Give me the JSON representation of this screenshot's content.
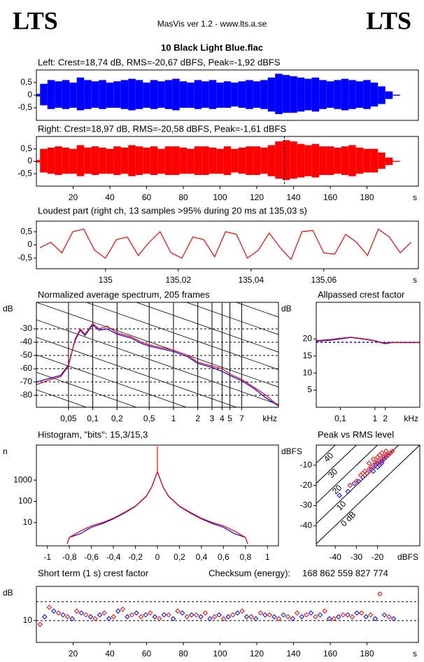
{
  "header": {
    "logo_left": "LTS",
    "logo_right": "LTS",
    "app": "MasVis ver 1.2 - www.lts.a.se",
    "file": "10 Black Light Blue.flac"
  },
  "chart_data": [
    {
      "type": "waveform",
      "title": "Left: Crest=18,74 dB, RMS=-20,67 dBFS, Peak=-1,92 dBFS",
      "xlim": [
        0,
        208
      ],
      "ylim": [
        -1,
        1
      ],
      "yticks": [
        {
          "value": 0.5,
          "label": "0,5"
        },
        0,
        {
          "value": -0.5,
          "label": "-0,5"
        }
      ],
      "x": [
        0,
        4,
        8,
        12,
        16,
        20,
        24,
        28,
        32,
        36,
        40,
        44,
        48,
        52,
        56,
        60,
        64,
        68,
        72,
        76,
        80,
        84,
        88,
        92,
        96,
        100,
        104,
        108,
        112,
        116,
        120,
        124,
        128,
        132,
        136,
        140,
        144,
        148,
        152,
        156,
        160,
        164,
        168,
        172,
        176,
        180,
        184,
        188,
        192,
        196
      ],
      "series": [
        {
          "color": "#0000ff",
          "values": [
            0.05,
            0.45,
            0.6,
            0.55,
            0.6,
            0.5,
            0.7,
            0.6,
            0.55,
            0.6,
            0.5,
            0.55,
            0.6,
            0.65,
            0.6,
            0.5,
            0.6,
            0.55,
            0.6,
            0.65,
            0.55,
            0.5,
            0.6,
            0.55,
            0.6,
            0.5,
            0.55,
            0.5,
            0.55,
            0.6,
            0.55,
            0.6,
            0.7,
            0.85,
            0.8,
            0.75,
            0.7,
            0.65,
            0.7,
            0.6,
            0.55,
            0.6,
            0.65,
            0.6,
            0.55,
            0.6,
            0.5,
            0.35,
            0.15,
            0.02
          ],
          "lower": [
            -0.05,
            -0.4,
            -0.55,
            -0.5,
            -0.55,
            -0.5,
            -0.6,
            -0.55,
            -0.5,
            -0.55,
            -0.5,
            -0.5,
            -0.55,
            -0.6,
            -0.55,
            -0.5,
            -0.55,
            -0.5,
            -0.55,
            -0.6,
            -0.5,
            -0.5,
            -0.55,
            -0.5,
            -0.55,
            -0.5,
            -0.5,
            -0.45,
            -0.5,
            -0.55,
            -0.5,
            -0.55,
            -0.65,
            -0.75,
            -0.7,
            -0.7,
            -0.65,
            -0.6,
            -0.65,
            -0.55,
            -0.5,
            -0.55,
            -0.6,
            -0.55,
            -0.5,
            -0.55,
            -0.45,
            -0.35,
            -0.15,
            -0.02
          ]
        }
      ]
    },
    {
      "type": "waveform",
      "title": "Right: Crest=18,97 dB, RMS=-20,58 dBFS, Peak=-1,61 dBFS",
      "xlim": [
        0,
        208
      ],
      "ylim": [
        -1,
        1
      ],
      "yticks": [
        {
          "value": 0.5,
          "label": "0,5"
        },
        0,
        {
          "value": -0.5,
          "label": "-0,5"
        }
      ],
      "xticks": [
        20,
        40,
        60,
        80,
        100,
        120,
        140,
        160,
        180
      ],
      "xlabel": "s",
      "vlines": [
        135.03
      ],
      "x": [
        0,
        4,
        8,
        12,
        16,
        20,
        24,
        28,
        32,
        36,
        40,
        44,
        48,
        52,
        56,
        60,
        64,
        68,
        72,
        76,
        80,
        84,
        88,
        92,
        96,
        100,
        104,
        108,
        112,
        116,
        120,
        124,
        128,
        132,
        136,
        140,
        144,
        148,
        152,
        156,
        160,
        164,
        168,
        172,
        176,
        180,
        184,
        188,
        192,
        196
      ],
      "series": [
        {
          "color": "#ff0000",
          "values": [
            0.05,
            0.5,
            0.55,
            0.6,
            0.55,
            0.5,
            0.65,
            0.55,
            0.6,
            0.55,
            0.5,
            0.6,
            0.55,
            0.65,
            0.6,
            0.55,
            0.6,
            0.5,
            0.6,
            0.6,
            0.55,
            0.5,
            0.6,
            0.6,
            0.55,
            0.5,
            0.6,
            0.5,
            0.55,
            0.6,
            0.6,
            0.55,
            0.65,
            0.8,
            0.85,
            0.8,
            0.7,
            0.65,
            0.7,
            0.6,
            0.6,
            0.55,
            0.6,
            0.65,
            0.55,
            0.5,
            0.5,
            0.35,
            0.15,
            0.02
          ],
          "lower": [
            -0.05,
            -0.45,
            -0.5,
            -0.55,
            -0.5,
            -0.5,
            -0.6,
            -0.5,
            -0.55,
            -0.5,
            -0.5,
            -0.55,
            -0.5,
            -0.6,
            -0.55,
            -0.5,
            -0.55,
            -0.5,
            -0.55,
            -0.55,
            -0.5,
            -0.5,
            -0.55,
            -0.55,
            -0.5,
            -0.5,
            -0.55,
            -0.45,
            -0.5,
            -0.55,
            -0.55,
            -0.5,
            -0.6,
            -0.7,
            -0.75,
            -0.7,
            -0.65,
            -0.6,
            -0.65,
            -0.55,
            -0.55,
            -0.5,
            -0.55,
            -0.6,
            -0.5,
            -0.45,
            -0.45,
            -0.3,
            -0.15,
            -0.02
          ]
        }
      ]
    },
    {
      "type": "line",
      "title": "Loudest part (right ch, 13 samples >95% during 20 ms at 135,03 s)",
      "xlim": [
        134.981,
        135.086
      ],
      "ylim": [
        -0.9,
        0.9
      ],
      "yticks": [
        {
          "value": 0.5,
          "label": "0,5"
        },
        0,
        {
          "value": -0.5,
          "label": "-0,5"
        }
      ],
      "xticks": [
        135,
        {
          "value": 135.02,
          "label": "135,02"
        },
        {
          "value": 135.04,
          "label": "135,04"
        },
        {
          "value": 135.06,
          "label": "135,06"
        }
      ],
      "xlabel": "s",
      "x": [
        134.982,
        134.985,
        134.988,
        134.991,
        134.994,
        134.997,
        135.0,
        135.003,
        135.006,
        135.009,
        135.012,
        135.015,
        135.018,
        135.021,
        135.024,
        135.027,
        135.03,
        135.033,
        135.036,
        135.039,
        135.042,
        135.045,
        135.048,
        135.051,
        135.054,
        135.057,
        135.06,
        135.063,
        135.066,
        135.069,
        135.072,
        135.075,
        135.078,
        135.081,
        135.084
      ],
      "series": [
        {
          "color": "#ff0000",
          "values": [
            -0.1,
            0.1,
            -0.3,
            0.5,
            0.6,
            -0.2,
            -0.5,
            0.2,
            0.3,
            -0.4,
            0.1,
            0.5,
            -0.3,
            -0.5,
            0.3,
            0.2,
            -0.45,
            0.5,
            0.4,
            -0.5,
            -0.2,
            0.45,
            -0.1,
            -0.55,
            0.5,
            0.55,
            -0.3,
            -0.35,
            0.4,
            0.1,
            -0.4,
            0.6,
            0.3,
            -0.3,
            0.1
          ]
        }
      ]
    },
    {
      "type": "line",
      "title": "Normalized average spectrum, 205 frames",
      "xlog": true,
      "xlim": [
        0.02,
        20
      ],
      "ylim": [
        -89,
        -10
      ],
      "grid": true,
      "ylabel": "dB",
      "xlabel": "kHz",
      "yticks": [
        -30,
        -40,
        -50,
        -60,
        -70,
        -80
      ],
      "xticks": [
        {
          "value": 0.05,
          "label": "0,05"
        },
        {
          "value": 0.1,
          "label": "0,1"
        },
        {
          "value": 0.2,
          "label": "0,2"
        },
        {
          "value": 0.5,
          "label": "0,5"
        },
        1,
        2,
        3,
        4,
        5,
        7
      ],
      "x": [
        0.02,
        0.03,
        0.04,
        0.05,
        0.06,
        0.07,
        0.08,
        0.1,
        0.12,
        0.15,
        0.2,
        0.3,
        0.4,
        0.5,
        0.7,
        1,
        1.5,
        2,
        3,
        4,
        5,
        7,
        10,
        14,
        20
      ],
      "series": [
        {
          "color": "#0000ff",
          "values": [
            -70,
            -67,
            -65,
            -57,
            -39,
            -31,
            -35,
            -27,
            -31,
            -30,
            -34,
            -37,
            -41,
            -43,
            -45,
            -47,
            -51,
            -56,
            -59,
            -62,
            -65,
            -69,
            -75,
            -82,
            -88
          ]
        },
        {
          "color": "#ff0000",
          "values": [
            -72,
            -68,
            -66,
            -58,
            -38,
            -30,
            -34,
            -26,
            -30,
            -28,
            -33,
            -36,
            -40,
            -42,
            -44,
            -46,
            -50,
            -55,
            -58,
            -60,
            -64,
            -68,
            -74,
            -80,
            -88
          ]
        }
      ]
    },
    {
      "type": "line",
      "title": "Allpassed crest factor",
      "xlog": true,
      "xlim": [
        0.02,
        20
      ],
      "ylim": [
        0,
        30.7
      ],
      "ylabel": "dB",
      "xlabel": "kHz",
      "yticks": [
        20,
        15,
        10,
        5
      ],
      "xticks": [
        {
          "value": 0.1,
          "label": "0,1"
        },
        1,
        2
      ],
      "hlines": [
        19
      ],
      "x": [
        0.02,
        0.05,
        0.1,
        0.2,
        0.5,
        1,
        1.5,
        2,
        3,
        5,
        10,
        20
      ],
      "series": [
        {
          "color": "#0000ff",
          "values": [
            19.3,
            19.6,
            20,
            20.4,
            19.9,
            19.4,
            18.9,
            18.6,
            18.9,
            18.9,
            18.9,
            18.9
          ]
        },
        {
          "color": "#ff0000",
          "values": [
            19.5,
            19.8,
            20.2,
            20.5,
            20,
            19.5,
            19,
            18.8,
            19,
            19,
            19,
            19
          ]
        }
      ]
    },
    {
      "type": "line",
      "title": "Histogram, \"bits\": 15,3/15,3",
      "ylog": true,
      "xlim": [
        -1.1,
        1.1
      ],
      "ylim": [
        0.8,
        45000
      ],
      "ylabel": "n",
      "yticks": [
        1000,
        100,
        10
      ],
      "xticks": [
        -1,
        {
          "value": -0.8,
          "label": "-0,8"
        },
        {
          "value": -0.6,
          "label": "-0,6"
        },
        {
          "value": -0.4,
          "label": "-0,4"
        },
        {
          "value": -0.2,
          "label": "-0,2"
        },
        0,
        {
          "value": 0.2,
          "label": "0,2"
        },
        {
          "value": 0.4,
          "label": "0,4"
        },
        {
          "value": 0.6,
          "label": "0,6"
        },
        {
          "value": 0.8,
          "label": "0,8"
        },
        1
      ],
      "x": [
        -0.82,
        -0.8,
        -0.7,
        -0.6,
        -0.5,
        -0.4,
        -0.3,
        -0.2,
        -0.1,
        -0.05,
        0,
        0,
        0,
        0.05,
        0.1,
        0.2,
        0.3,
        0.4,
        0.5,
        0.6,
        0.7,
        0.8,
        0.82
      ],
      "series": [
        {
          "color": "#0000ff",
          "values": [
            1,
            2,
            3,
            6,
            9,
            15,
            28,
            58,
            175,
            490,
            2450,
            2500,
            2450,
            490,
            175,
            58,
            28,
            15,
            9,
            6,
            3,
            2,
            1
          ]
        },
        {
          "color": "#ff0000",
          "values": [
            1,
            2,
            4,
            7,
            10,
            16,
            30,
            60,
            180,
            500,
            2500,
            40000,
            2500,
            500,
            180,
            60,
            30,
            16,
            10,
            7,
            4,
            2,
            1
          ]
        }
      ]
    },
    {
      "type": "scatter",
      "title": "Peak vs RMS level",
      "xlim": [
        -49,
        0
      ],
      "ylim": [
        -50,
        0
      ],
      "ylabel": "dBFS",
      "xlabel": "dBFS",
      "xticks": [
        -40,
        -30,
        -20
      ],
      "yticks": [
        -10,
        -20,
        -30,
        -40
      ],
      "diagonals": [
        {
          "value": 40,
          "label": "40"
        },
        {
          "value": 30,
          "label": "30"
        },
        {
          "value": 20,
          "label": "20"
        },
        {
          "value": 10,
          "label": "10"
        },
        {
          "value": 0,
          "label": "0 dB"
        }
      ],
      "series": [
        {
          "color": "#0000ff",
          "x": [
            -38,
            -34,
            -31,
            -29,
            -27,
            -25,
            -23,
            -21,
            -20,
            -19,
            -18,
            -17,
            -16,
            -15,
            -14,
            -22,
            -20,
            -18
          ],
          "values": [
            -25,
            -23,
            -19,
            -18,
            -16,
            -14,
            -12,
            -10,
            -9,
            -10,
            -8,
            -7,
            -6,
            -5,
            -4,
            -13,
            -11,
            -9
          ]
        },
        {
          "color": "#ff0000",
          "x": [
            -33,
            -30,
            -28,
            -27,
            -26,
            -25,
            -24,
            -23,
            -22,
            -21,
            -20,
            -19,
            -18,
            -17,
            -16,
            -15,
            -14,
            -13,
            -22,
            -20,
            -18,
            -16,
            -24,
            -19,
            -17
          ],
          "values": [
            -20,
            -18,
            -15,
            -14,
            -13,
            -14,
            -12,
            -11,
            -10,
            -9,
            -8,
            -9,
            -7,
            -6,
            -5,
            -5,
            -4,
            -3,
            -7,
            -6,
            -4,
            -3,
            -9,
            -5,
            -6
          ]
        }
      ]
    },
    {
      "type": "scatter",
      "title": "Short term (1 s) crest factor",
      "annotations": [
        "Checksum (energy):",
        "168 862 559 827 774"
      ],
      "xlim": [
        0,
        208
      ],
      "ylim": [
        -1.5,
        28
      ],
      "ylabel": "dB",
      "xlabel": "s",
      "yticks": [
        10
      ],
      "hlines": [
        10,
        20
      ],
      "xticks": [
        20,
        40,
        60,
        80,
        100,
        120,
        140,
        160,
        180
      ],
      "series": [
        {
          "color": "#0000ff",
          "x": [
            4.5,
            9.5,
            14.5,
            19.5,
            24.5,
            29.5,
            34.5,
            39.5,
            44.5,
            49.5,
            54.5,
            59.5,
            64.5,
            69.5,
            74.5,
            79.5,
            84.5,
            89.5,
            94.5,
            99.5,
            104.5,
            109.5,
            114.5,
            119.5,
            124.5,
            129.5,
            134.5,
            139.5,
            144.5,
            149.5,
            154.5,
            159.5,
            164.5,
            169.5,
            174.5,
            179.5,
            184.5,
            189.5,
            194.5
          ],
          "values": [
            12,
            15,
            13,
            11,
            14,
            12,
            13,
            11,
            15,
            12,
            14,
            13,
            12,
            13,
            11,
            14,
            13,
            12,
            11,
            13,
            12,
            14,
            12,
            11,
            13,
            12,
            13,
            11,
            12,
            14,
            13,
            11,
            12,
            13,
            14,
            12,
            11,
            13,
            11
          ]
        },
        {
          "color": "#ff0000",
          "x": [
            2,
            7,
            12,
            17,
            22,
            27,
            32,
            37,
            42,
            47,
            52,
            57,
            62,
            67,
            72,
            77,
            82,
            87,
            92,
            97,
            102,
            107,
            112,
            117,
            122,
            127,
            132,
            137,
            142,
            147,
            152,
            157,
            162,
            167,
            172,
            177,
            182,
            187,
            192
          ],
          "values": [
            8,
            17,
            14,
            12,
            15,
            13,
            11,
            14,
            12,
            16,
            13,
            12,
            14,
            11,
            13,
            15,
            12,
            13,
            14,
            12,
            11,
            13,
            15,
            12,
            14,
            13,
            11,
            12,
            14,
            13,
            12,
            15,
            11,
            13,
            12,
            14,
            13,
            24,
            12
          ]
        }
      ]
    }
  ]
}
